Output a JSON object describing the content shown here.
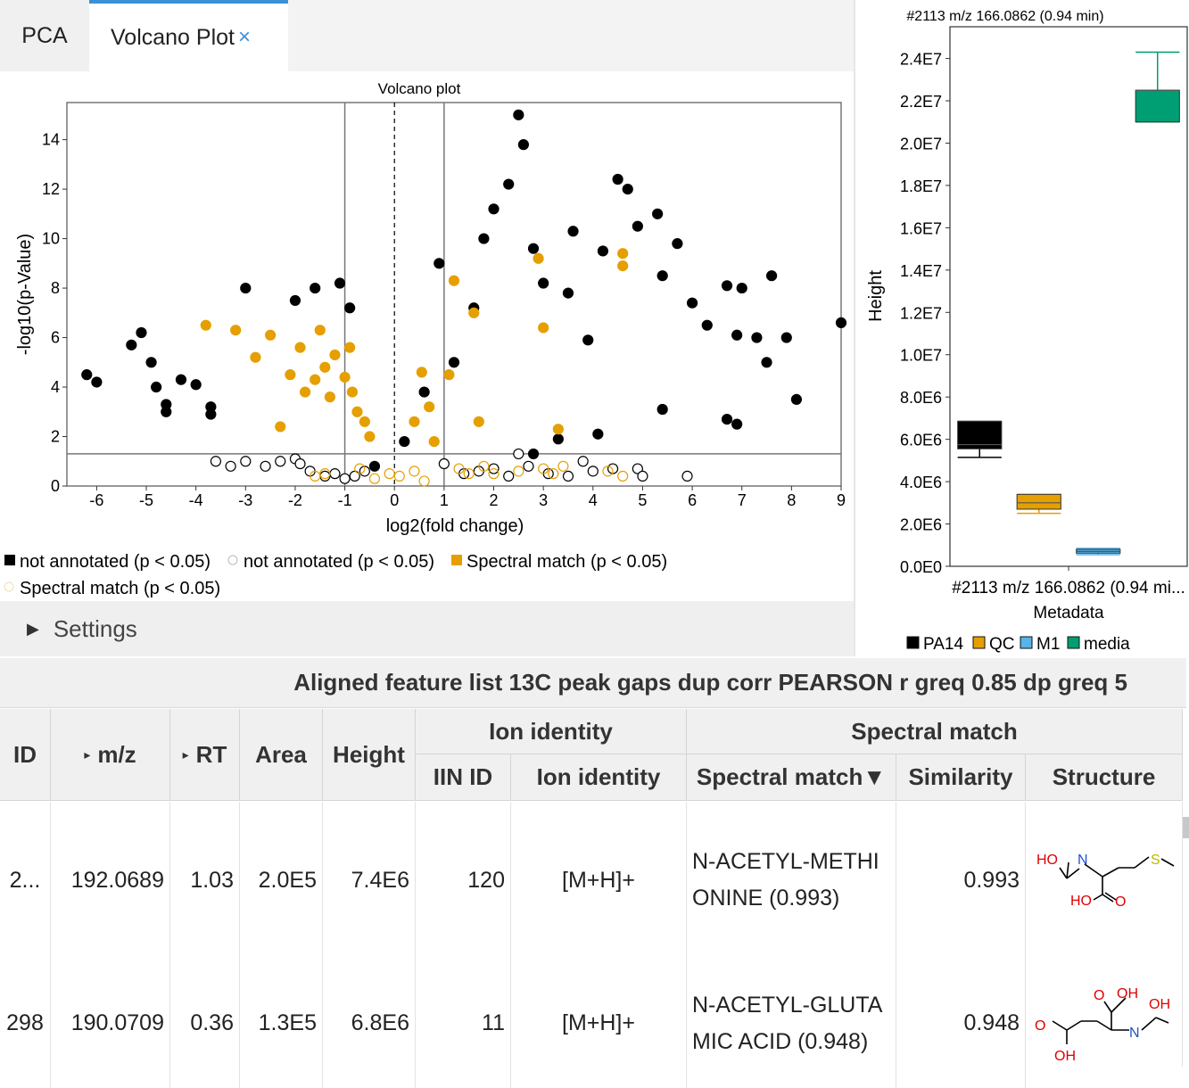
{
  "tabs": {
    "pca": "PCA",
    "volcano": "Volcano Plot",
    "close": "×"
  },
  "settings": {
    "label": "Settings"
  },
  "volcano": {
    "title": "Volcano plot",
    "xlabel": "log2(fold change)",
    "ylabel": "-log10(p-Value)",
    "xticks": [
      "-6",
      "-5",
      "-4",
      "-3",
      "-2",
      "-1",
      "0",
      "1",
      "2",
      "3",
      "4",
      "5",
      "6",
      "7",
      "8",
      "9"
    ],
    "yticks": [
      "0",
      "2",
      "4",
      "6",
      "8",
      "10",
      "12",
      "14"
    ],
    "legend": [
      "not annotated (p < 0.05)",
      "not annotated (p < 0.05)",
      "Spectral match (p < 0.05)",
      "Spectral match (p < 0.05)"
    ],
    "colors": {
      "sig": "#000000",
      "match": "#E69F00",
      "nonsig": "#ffffff"
    }
  },
  "chart_data": [
    {
      "type": "scatter",
      "title": "Volcano plot",
      "xlabel": "log2(fold change)",
      "ylabel": "-log10(p-Value)",
      "xlim": [
        -6.6,
        9.0
      ],
      "ylim": [
        0,
        15.5
      ],
      "thresholds": {
        "fold_change_lines": [
          -1,
          1
        ],
        "center_line": 0,
        "p_line": 1.3
      },
      "series": [
        {
          "name": "not annotated (p < 0.05)",
          "points": [
            [
              -6.2,
              4.5
            ],
            [
              -6.0,
              4.2
            ],
            [
              -5.3,
              5.7
            ],
            [
              -5.1,
              6.2
            ],
            [
              -4.9,
              5.0
            ],
            [
              -4.8,
              4.0
            ],
            [
              -4.6,
              3.3
            ],
            [
              -4.6,
              3.0
            ],
            [
              -4.3,
              4.3
            ],
            [
              -4.0,
              4.1
            ],
            [
              -3.7,
              3.2
            ],
            [
              -3.7,
              2.9
            ],
            [
              -3.0,
              8.0
            ],
            [
              -2.0,
              7.5
            ],
            [
              -1.6,
              8.0
            ],
            [
              -1.1,
              8.2
            ],
            [
              -0.9,
              7.2
            ],
            [
              -0.4,
              0.8
            ],
            [
              0.2,
              1.8
            ],
            [
              0.6,
              3.8
            ],
            [
              0.9,
              9.0
            ],
            [
              1.2,
              5.0
            ],
            [
              1.6,
              7.2
            ],
            [
              1.8,
              10.0
            ],
            [
              2.0,
              11.2
            ],
            [
              2.3,
              12.2
            ],
            [
              2.5,
              15.0
            ],
            [
              2.6,
              13.8
            ],
            [
              2.8,
              9.6
            ],
            [
              3.0,
              8.2
            ],
            [
              3.5,
              7.8
            ],
            [
              3.6,
              10.3
            ],
            [
              3.9,
              5.9
            ],
            [
              4.2,
              9.5
            ],
            [
              4.5,
              12.4
            ],
            [
              4.7,
              12.0
            ],
            [
              4.9,
              10.5
            ],
            [
              5.3,
              11.0
            ],
            [
              5.4,
              8.5
            ],
            [
              5.7,
              9.8
            ],
            [
              6.0,
              7.4
            ],
            [
              6.3,
              6.5
            ],
            [
              6.7,
              8.1
            ],
            [
              6.9,
              6.1
            ],
            [
              7.0,
              8.0
            ],
            [
              7.3,
              6.0
            ],
            [
              7.5,
              5.0
            ],
            [
              7.6,
              8.5
            ],
            [
              7.9,
              6.0
            ],
            [
              8.1,
              3.5
            ],
            [
              9.0,
              6.6
            ],
            [
              6.7,
              2.7
            ],
            [
              6.9,
              2.5
            ],
            [
              5.4,
              3.1
            ],
            [
              4.1,
              2.1
            ],
            [
              3.3,
              1.9
            ],
            [
              2.8,
              1.3
            ]
          ]
        },
        {
          "name": "not annotated (p < 0.05)",
          "points": [
            [
              -3.6,
              1.0
            ],
            [
              -3.3,
              0.8
            ],
            [
              -3.0,
              1.0
            ],
            [
              -2.6,
              0.8
            ],
            [
              -2.3,
              1.0
            ],
            [
              -2.0,
              1.1
            ],
            [
              -1.9,
              0.9
            ],
            [
              -1.7,
              0.6
            ],
            [
              -1.4,
              0.4
            ],
            [
              -1.2,
              0.5
            ],
            [
              -1.0,
              0.3
            ],
            [
              -0.8,
              0.4
            ],
            [
              -0.6,
              0.6
            ],
            [
              1.0,
              0.9
            ],
            [
              1.4,
              0.5
            ],
            [
              1.7,
              0.6
            ],
            [
              2.0,
              0.7
            ],
            [
              2.3,
              0.4
            ],
            [
              2.5,
              1.3
            ],
            [
              2.7,
              0.8
            ],
            [
              3.1,
              0.5
            ],
            [
              3.5,
              0.4
            ],
            [
              3.8,
              1.0
            ],
            [
              4.0,
              0.6
            ],
            [
              4.4,
              0.7
            ],
            [
              4.9,
              0.7
            ],
            [
              5.0,
              0.4
            ],
            [
              5.9,
              0.4
            ]
          ]
        },
        {
          "name": "Spectral match (p < 0.05)",
          "points": [
            [
              -3.8,
              6.5
            ],
            [
              -3.2,
              6.3
            ],
            [
              -2.8,
              5.2
            ],
            [
              -2.5,
              6.1
            ],
            [
              -2.3,
              2.4
            ],
            [
              -2.1,
              4.5
            ],
            [
              -1.9,
              5.6
            ],
            [
              -1.8,
              3.8
            ],
            [
              -1.6,
              4.3
            ],
            [
              -1.5,
              6.3
            ],
            [
              -1.4,
              4.8
            ],
            [
              -1.3,
              3.6
            ],
            [
              -1.2,
              5.3
            ],
            [
              -1.0,
              4.4
            ],
            [
              -0.9,
              5.6
            ],
            [
              -0.85,
              3.8
            ],
            [
              -0.75,
              3.0
            ],
            [
              -0.6,
              2.6
            ],
            [
              -0.5,
              2.0
            ],
            [
              0.4,
              2.6
            ],
            [
              0.55,
              4.6
            ],
            [
              0.7,
              3.2
            ],
            [
              0.8,
              1.8
            ],
            [
              1.1,
              4.5
            ],
            [
              1.2,
              8.3
            ],
            [
              1.6,
              7.0
            ],
            [
              1.7,
              2.6
            ],
            [
              2.9,
              9.2
            ],
            [
              3.0,
              6.4
            ],
            [
              3.3,
              2.3
            ],
            [
              4.6,
              9.4
            ],
            [
              4.6,
              8.9
            ]
          ]
        },
        {
          "name": "Spectral match (p < 0.05)",
          "points": [
            [
              -1.6,
              0.4
            ],
            [
              -1.4,
              0.5
            ],
            [
              -0.7,
              0.7
            ],
            [
              -0.4,
              0.3
            ],
            [
              -0.1,
              0.5
            ],
            [
              0.1,
              0.4
            ],
            [
              0.4,
              0.6
            ],
            [
              0.6,
              0.2
            ],
            [
              1.3,
              0.7
            ],
            [
              1.5,
              0.5
            ],
            [
              1.8,
              0.8
            ],
            [
              2.0,
              0.5
            ],
            [
              2.5,
              0.6
            ],
            [
              3.0,
              0.7
            ],
            [
              3.2,
              0.5
            ],
            [
              3.4,
              0.8
            ],
            [
              4.3,
              0.6
            ],
            [
              4.6,
              0.4
            ]
          ]
        }
      ]
    },
    {
      "type": "box",
      "title": "#2113 m/z 166.0862 (0.94 min)",
      "xlabel": "#2113 m/z 166.0862 (0.94 mi...",
      "xlabel2": "Metadata",
      "ylabel": "Height",
      "ylim": [
        0,
        25500000
      ],
      "yticks": [
        "0.0E0",
        "2.0E6",
        "4.0E6",
        "6.0E6",
        "8.0E6",
        "1.0E7",
        "1.2E7",
        "1.4E7",
        "1.6E7",
        "1.8E7",
        "2.0E7",
        "2.2E7",
        "2.4E7"
      ],
      "boxes": [
        {
          "name": "PA14",
          "color": "#000000",
          "min": 5150000,
          "q1": 5550000,
          "median": 5750000,
          "q3": 6850000,
          "max": 6850000
        },
        {
          "name": "QC",
          "color": "#E69F00",
          "min": 2500000,
          "q1": 2700000,
          "median": 3000000,
          "q3": 3400000,
          "max": 3400000
        },
        {
          "name": "M1",
          "color": "#56B4E9",
          "min": 550000,
          "q1": 620000,
          "median": 700000,
          "q3": 800000,
          "max": 850000
        },
        {
          "name": "media",
          "color": "#009E73",
          "min": 21000000,
          "q1": 21000000,
          "median": 22500000,
          "q3": 22500000,
          "max": 24300000
        }
      ],
      "legend": [
        "PA14",
        "QC",
        "M1",
        "media"
      ]
    }
  ],
  "table": {
    "title": "Aligned feature list 13C peak gaps dup corr PEARSON r greq 0.85 dp greq 5",
    "groups": {
      "ion": "Ion identity",
      "spectral": "Spectral match"
    },
    "headers": {
      "id": "ID",
      "mz": "m/z",
      "rt": "RT",
      "area": "Area",
      "height": "Height",
      "iin": "IIN ID",
      "ion": "Ion identity",
      "match": "Spectral match▼",
      "sim": "Similarity",
      "struct": "Structure"
    },
    "rows": [
      {
        "id": "2...",
        "mz": "192.0689",
        "rt": "1.03",
        "area": "2.0E5",
        "height": "7.4E6",
        "iin": "120",
        "ion": "[M+H]+",
        "match1": "N-ACETYL-METHI",
        "match2": "ONINE (0.993)",
        "sim": "0.993"
      },
      {
        "id": "298",
        "mz": "190.0709",
        "rt": "0.36",
        "area": "1.3E5",
        "height": "6.8E6",
        "iin": "11",
        "ion": "[M+H]+",
        "match1": "N-ACETYL-GLUTA",
        "match2": "MIC ACID (0.948)",
        "sim": "0.948"
      }
    ],
    "atoms": {
      "ho": "HO",
      "n": "N",
      "s": "S",
      "o": "O",
      "oh": "OH"
    }
  }
}
